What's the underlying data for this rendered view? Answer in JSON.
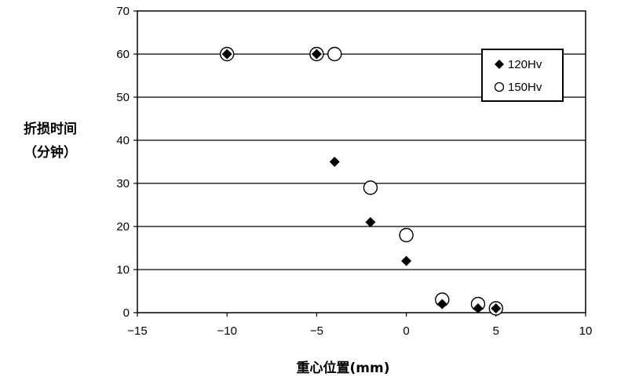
{
  "chart_data": {
    "type": "scatter",
    "title": "",
    "xlabel": "重心位置(mm)",
    "ylabel_line1": "折损时间",
    "ylabel_line2": "（分钟）",
    "xlim": [
      -15,
      10
    ],
    "ylim": [
      0,
      70
    ],
    "xticks": [
      -15,
      -10,
      -5,
      0,
      5,
      10
    ],
    "xtick_labels": [
      "−15",
      "−10",
      "−5",
      "0",
      "5",
      "10"
    ],
    "yticks": [
      0,
      10,
      20,
      30,
      40,
      50,
      60,
      70
    ],
    "ytick_labels": [
      "0",
      "10",
      "20",
      "30",
      "40",
      "50",
      "60",
      "70"
    ],
    "grid": "horizontal",
    "legend_position": "top-right",
    "series": [
      {
        "name": "120Hv",
        "marker": "diamond-filled",
        "color": "#000000",
        "points": [
          [
            -10,
            60
          ],
          [
            -5,
            60
          ],
          [
            -4,
            35
          ],
          [
            -2,
            21
          ],
          [
            0,
            12
          ],
          [
            2,
            2
          ],
          [
            4,
            1
          ],
          [
            5,
            1
          ]
        ]
      },
      {
        "name": "150Hv",
        "marker": "circle-open",
        "color": "#000000",
        "points": [
          [
            -10,
            60
          ],
          [
            -5,
            60
          ],
          [
            -4,
            60
          ],
          [
            -2,
            29
          ],
          [
            0,
            18
          ],
          [
            2,
            3
          ],
          [
            4,
            2
          ],
          [
            5,
            1
          ]
        ]
      }
    ]
  }
}
